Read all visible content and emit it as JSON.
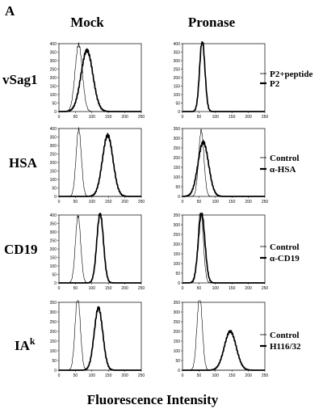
{
  "panel_letter": "A",
  "columns": [
    "Mock",
    "Pronase"
  ],
  "xlabel": "Fluorescence Intensity",
  "rows": [
    {
      "label": "vSag1",
      "sup": "",
      "legend": [
        "P2+peptide",
        "P2"
      ]
    },
    {
      "label": "HSA",
      "sup": "",
      "legend": [
        "Control",
        "α-HSA"
      ]
    },
    {
      "label": "CD19",
      "sup": "",
      "legend": [
        "Control",
        "α-CD19"
      ]
    },
    {
      "label": "IA",
      "sup": "k",
      "legend": [
        "Control",
        "H116/32"
      ]
    }
  ],
  "chart_data": [
    {
      "type": "line",
      "row": "vSag1",
      "column": "Mock",
      "xlim": [
        0,
        250
      ],
      "ylim": [
        0,
        400
      ],
      "xticks": [
        0,
        50,
        100,
        150,
        200,
        250
      ],
      "yticks": [
        0,
        50,
        100,
        150,
        200,
        250,
        300,
        350,
        400
      ],
      "series": [
        {
          "name": "P2+peptide",
          "peak_x": 60,
          "peak_y": 395,
          "width": 11
        },
        {
          "name": "P2",
          "peak_x": 85,
          "peak_y": 360,
          "width": 18
        }
      ]
    },
    {
      "type": "line",
      "row": "vSag1",
      "column": "Pronase",
      "xlim": [
        0,
        250
      ],
      "ylim": [
        0,
        400
      ],
      "xticks": [
        0,
        50,
        100,
        150,
        200,
        250
      ],
      "yticks": [
        0,
        50,
        100,
        150,
        200,
        250,
        300,
        350,
        400
      ],
      "series": [
        {
          "name": "P2+peptide",
          "peak_x": 60,
          "peak_y": 410,
          "width": 8
        },
        {
          "name": "P2",
          "peak_x": 60,
          "peak_y": 420,
          "width": 8
        }
      ]
    },
    {
      "type": "line",
      "row": "HSA",
      "column": "Mock",
      "xlim": [
        0,
        250
      ],
      "ylim": [
        0,
        400
      ],
      "xticks": [
        0,
        50,
        100,
        150,
        200,
        250
      ],
      "yticks": [
        0,
        50,
        100,
        150,
        200,
        250,
        300,
        350,
        400
      ],
      "series": [
        {
          "name": "Control",
          "peak_x": 60,
          "peak_y": 395,
          "width": 8
        },
        {
          "name": "α-HSA",
          "peak_x": 148,
          "peak_y": 360,
          "width": 16
        }
      ]
    },
    {
      "type": "line",
      "row": "HSA",
      "column": "Pronase",
      "xlim": [
        0,
        250
      ],
      "ylim": [
        0,
        350
      ],
      "xticks": [
        0,
        50,
        100,
        150,
        200,
        250
      ],
      "yticks": [
        0,
        50,
        100,
        150,
        200,
        250,
        300,
        350
      ],
      "series": [
        {
          "name": "Control",
          "peak_x": 57,
          "peak_y": 340,
          "width": 8
        },
        {
          "name": "α-HSA",
          "peak_x": 63,
          "peak_y": 280,
          "width": 16
        }
      ]
    },
    {
      "type": "line",
      "row": "CD19",
      "column": "Mock",
      "xlim": [
        0,
        250
      ],
      "ylim": [
        0,
        400
      ],
      "xticks": [
        0,
        50,
        100,
        150,
        200,
        250
      ],
      "yticks": [
        0,
        50,
        100,
        150,
        200,
        250,
        300,
        350,
        400
      ],
      "series": [
        {
          "name": "Control",
          "peak_x": 58,
          "peak_y": 395,
          "width": 8
        },
        {
          "name": "α-CD19",
          "peak_x": 125,
          "peak_y": 410,
          "width": 10
        }
      ]
    },
    {
      "type": "line",
      "row": "CD19",
      "column": "Pronase",
      "xlim": [
        0,
        250
      ],
      "ylim": [
        0,
        350
      ],
      "xticks": [
        0,
        50,
        100,
        150,
        200,
        250
      ],
      "yticks": [
        0,
        50,
        100,
        150,
        200,
        250,
        300,
        350
      ],
      "series": [
        {
          "name": "Control",
          "peak_x": 55,
          "peak_y": 380,
          "width": 8
        },
        {
          "name": "α-CD19",
          "peak_x": 58,
          "peak_y": 360,
          "width": 10
        }
      ]
    },
    {
      "type": "line",
      "row": "IA^k",
      "column": "Mock",
      "xlim": [
        0,
        250
      ],
      "ylim": [
        0,
        350
      ],
      "xticks": [
        0,
        50,
        100,
        150,
        200,
        250
      ],
      "yticks": [
        0,
        50,
        100,
        150,
        200,
        250,
        300,
        350
      ],
      "series": [
        {
          "name": "Control",
          "peak_x": 57,
          "peak_y": 380,
          "width": 8
        },
        {
          "name": "H116/32",
          "peak_x": 120,
          "peak_y": 320,
          "width": 13
        }
      ]
    },
    {
      "type": "line",
      "row": "IA^k",
      "column": "Pronase",
      "xlim": [
        0,
        250
      ],
      "ylim": [
        0,
        350
      ],
      "xticks": [
        0,
        50,
        100,
        150,
        200,
        250
      ],
      "yticks": [
        0,
        50,
        100,
        150,
        200,
        250,
        300,
        350
      ],
      "series": [
        {
          "name": "Control",
          "peak_x": 52,
          "peak_y": 385,
          "width": 8
        },
        {
          "name": "H116/32",
          "peak_x": 145,
          "peak_y": 200,
          "width": 18
        }
      ]
    }
  ]
}
